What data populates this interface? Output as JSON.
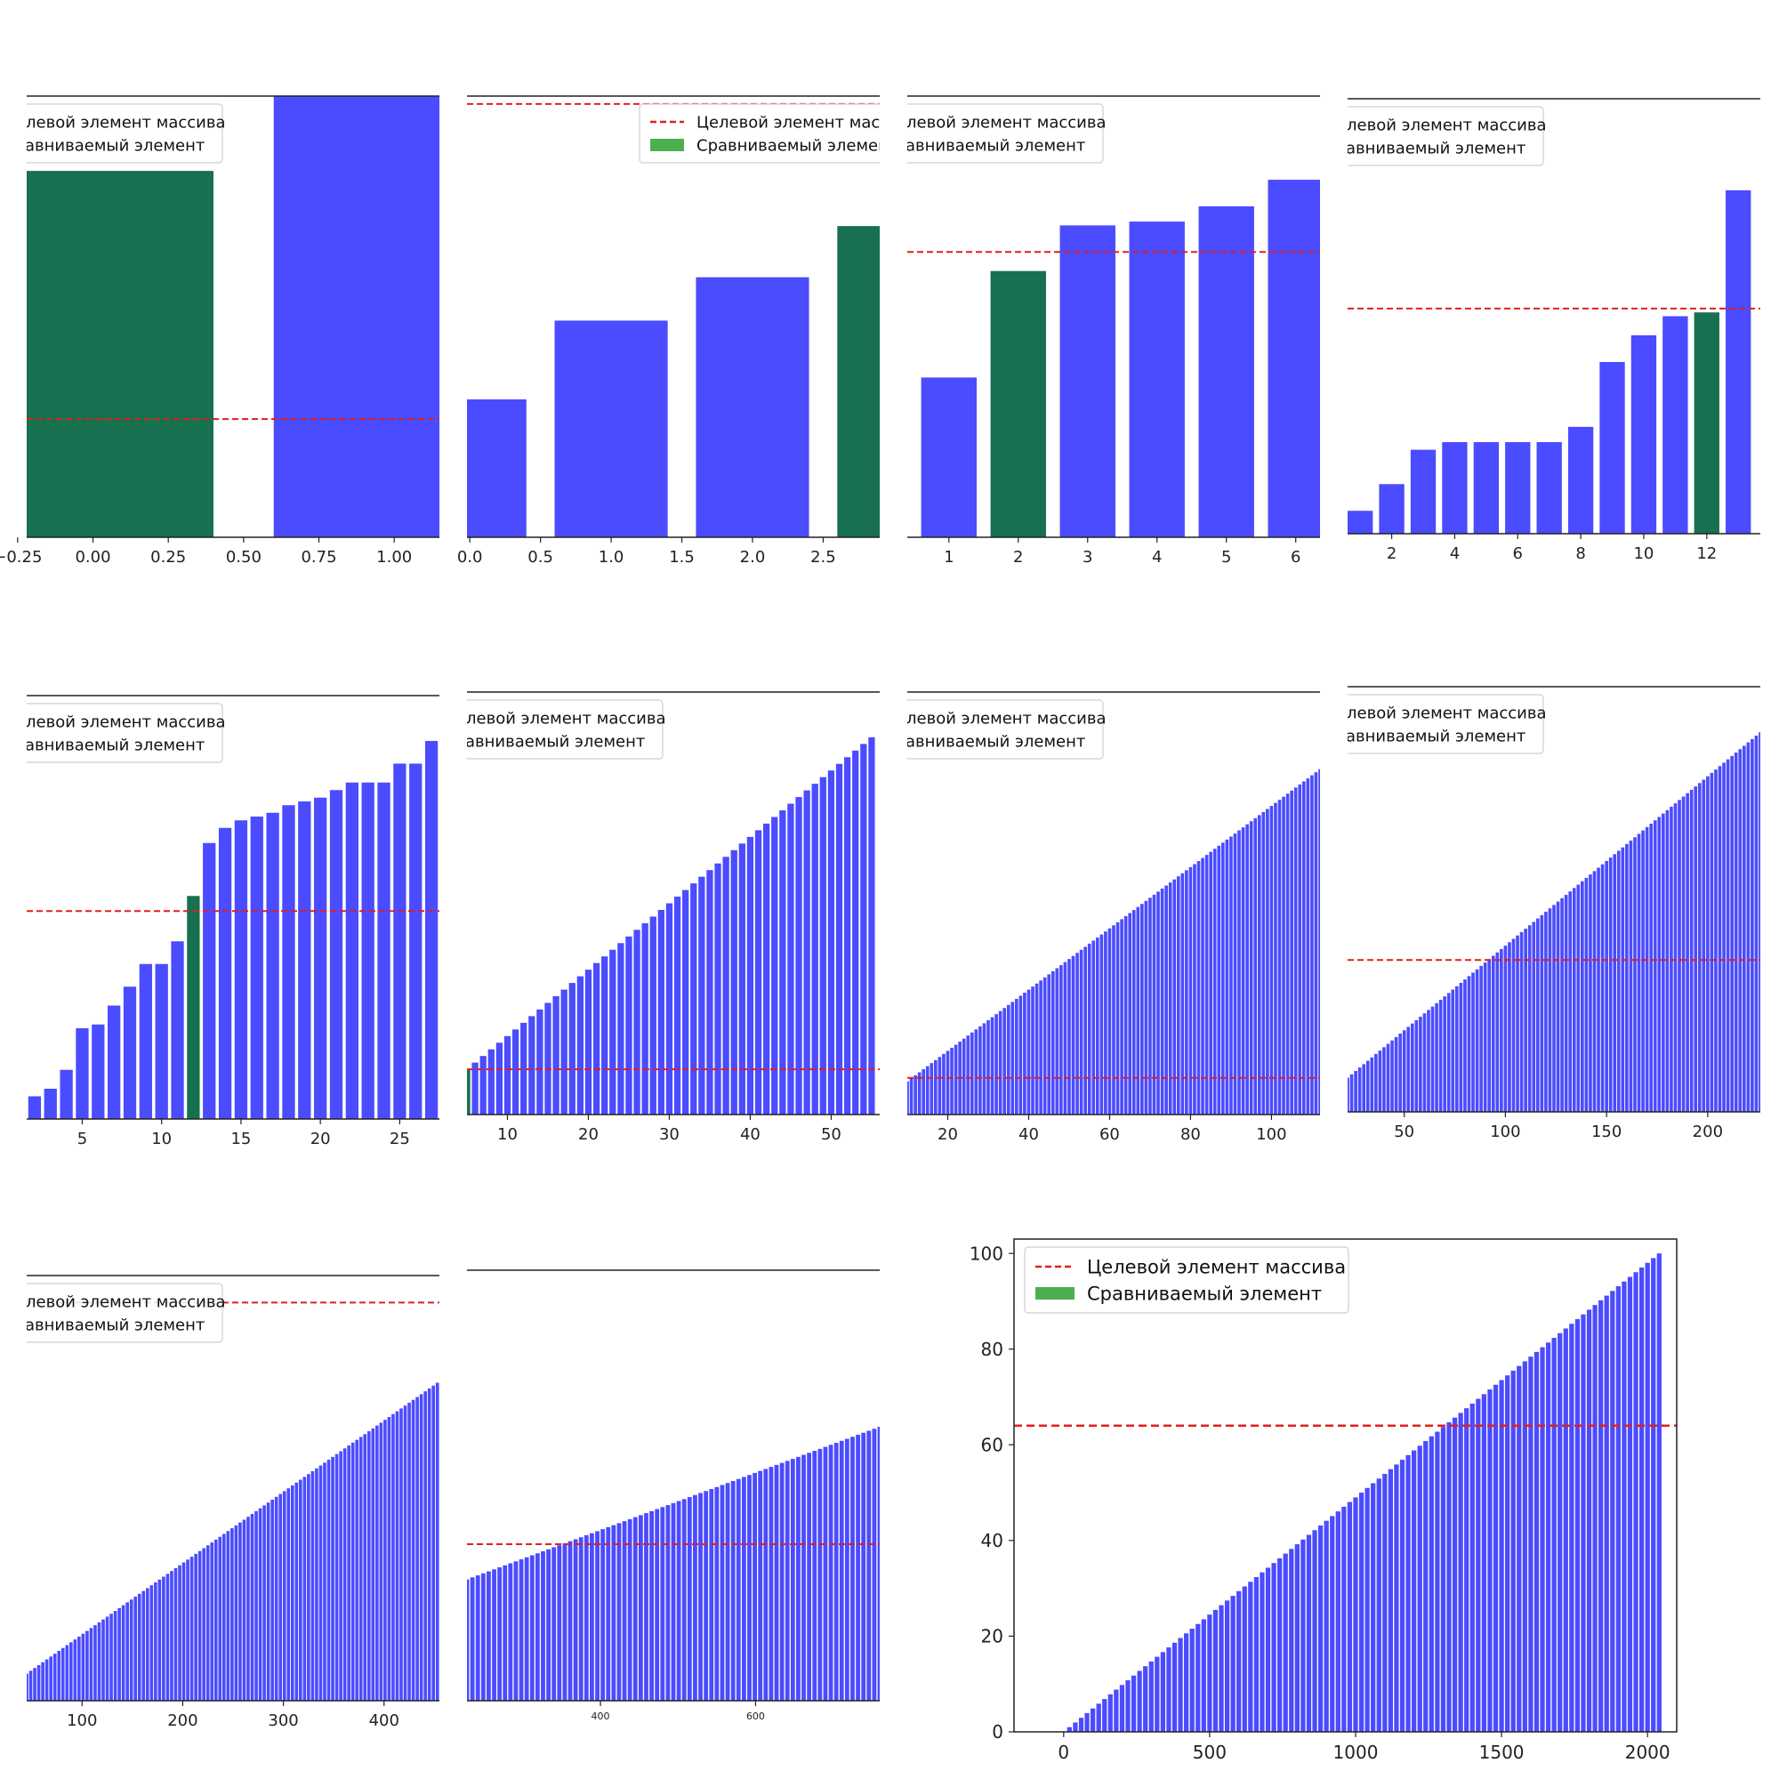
{
  "legend": {
    "target_label": "Целевой элемент массива",
    "compared_label": "Сравниваемый элемент"
  },
  "colors": {
    "bar": "#4b4bff",
    "compared": "#17704f",
    "compared_legend": "#4caf50",
    "target_line": "#e0201a",
    "axis": "#222222"
  },
  "chart_data": [
    {
      "type": "bar",
      "x_range": [
        -0.22,
        1.15
      ],
      "y_range": [
        0,
        1.12
      ],
      "bars": [
        {
          "x": 0,
          "y": 0.93,
          "w": 0.8,
          "hl": true
        },
        {
          "x": 1,
          "y": 1.12,
          "w": 0.8
        }
      ],
      "target": 0.3,
      "x_ticks": [
        {
          "v": -0.25,
          "label": "−0.25"
        },
        {
          "v": 0,
          "label": "0.00"
        },
        {
          "v": 0.25,
          "label": "0.25"
        },
        {
          "v": 0.5,
          "label": "0.50"
        },
        {
          "v": 0.75,
          "label": "0.75"
        },
        {
          "v": 1,
          "label": "1.00"
        }
      ],
      "legend_pos": "upper-left"
    },
    {
      "type": "bar",
      "x_range": [
        -0.02,
        2.9
      ],
      "y_range": [
        0,
        1.12
      ],
      "bars": [
        {
          "x": 0,
          "y": 0.35,
          "w": 0.8
        },
        {
          "x": 1,
          "y": 0.55,
          "w": 0.8
        },
        {
          "x": 2,
          "y": 0.66,
          "w": 0.8
        },
        {
          "x": 3,
          "y": 0.79,
          "w": 0.8,
          "hl": true
        }
      ],
      "target": 1.1,
      "x_ticks": [
        {
          "v": 0,
          "label": "0.0"
        },
        {
          "v": 0.5,
          "label": "0.5"
        },
        {
          "v": 1,
          "label": "1.0"
        },
        {
          "v": 1.5,
          "label": "1.5"
        },
        {
          "v": 2,
          "label": "2.0"
        },
        {
          "v": 2.5,
          "label": "2.5"
        }
      ],
      "legend_pos": "upper-right"
    },
    {
      "type": "bar",
      "x_range": [
        0.4,
        6.35
      ],
      "y_range": [
        0,
        1.16
      ],
      "bars": [
        {
          "x": 0,
          "y": 0.42
        },
        {
          "x": 1,
          "y": 0.42
        },
        {
          "x": 2,
          "y": 0.7,
          "hl": true
        },
        {
          "x": 3,
          "y": 0.82
        },
        {
          "x": 4,
          "y": 0.83
        },
        {
          "x": 5,
          "y": 0.87
        },
        {
          "x": 6,
          "y": 0.94
        }
      ],
      "target": 0.75,
      "x_ticks": [
        {
          "v": 1,
          "label": "1"
        },
        {
          "v": 2,
          "label": "2"
        },
        {
          "v": 3,
          "label": "3"
        },
        {
          "v": 4,
          "label": "4"
        },
        {
          "v": 5,
          "label": "5"
        },
        {
          "v": 6,
          "label": "6"
        }
      ],
      "legend_pos": "upper-left"
    },
    {
      "type": "bar",
      "x_range": [
        0.6,
        13.7
      ],
      "y_range": [
        0,
        1.14
      ],
      "bars": [
        {
          "x": 1,
          "y": 0.06
        },
        {
          "x": 2,
          "y": 0.13
        },
        {
          "x": 3,
          "y": 0.22
        },
        {
          "x": 4,
          "y": 0.24
        },
        {
          "x": 5,
          "y": 0.24
        },
        {
          "x": 6,
          "y": 0.24
        },
        {
          "x": 7,
          "y": 0.24
        },
        {
          "x": 8,
          "y": 0.28
        },
        {
          "x": 9,
          "y": 0.45
        },
        {
          "x": 10,
          "y": 0.52
        },
        {
          "x": 11,
          "y": 0.57
        },
        {
          "x": 12,
          "y": 0.58,
          "hl": true
        },
        {
          "x": 13,
          "y": 0.9
        }
      ],
      "target": 0.59,
      "x_ticks": [
        {
          "v": 2,
          "label": "2"
        },
        {
          "v": 4,
          "label": "4"
        },
        {
          "v": 6,
          "label": "6"
        },
        {
          "v": 8,
          "label": "8"
        },
        {
          "v": 10,
          "label": "10"
        },
        {
          "v": 12,
          "label": "12"
        }
      ],
      "legend_pos": "upper-left"
    },
    {
      "type": "bar",
      "x_range": [
        1.5,
        27.5
      ],
      "y_range": [
        0,
        1.12
      ],
      "bars": [
        {
          "x": 2,
          "y": 0.06
        },
        {
          "x": 3,
          "y": 0.08
        },
        {
          "x": 4,
          "y": 0.13
        },
        {
          "x": 5,
          "y": 0.24
        },
        {
          "x": 6,
          "y": 0.25
        },
        {
          "x": 7,
          "y": 0.3
        },
        {
          "x": 8,
          "y": 0.35
        },
        {
          "x": 9,
          "y": 0.41
        },
        {
          "x": 10,
          "y": 0.41
        },
        {
          "x": 11,
          "y": 0.47
        },
        {
          "x": 12,
          "y": 0.59,
          "hl": true
        },
        {
          "x": 13,
          "y": 0.73
        },
        {
          "x": 14,
          "y": 0.77
        },
        {
          "x": 15,
          "y": 0.79
        },
        {
          "x": 16,
          "y": 0.8
        },
        {
          "x": 17,
          "y": 0.81
        },
        {
          "x": 18,
          "y": 0.83
        },
        {
          "x": 19,
          "y": 0.84
        },
        {
          "x": 20,
          "y": 0.85
        },
        {
          "x": 21,
          "y": 0.87
        },
        {
          "x": 22,
          "y": 0.89
        },
        {
          "x": 23,
          "y": 0.89
        },
        {
          "x": 24,
          "y": 0.89
        },
        {
          "x": 25,
          "y": 0.94
        },
        {
          "x": 26,
          "y": 0.94
        },
        {
          "x": 27,
          "y": 1.0
        }
      ],
      "target": 0.55,
      "x_ticks": [
        {
          "v": 5,
          "label": "5"
        },
        {
          "v": 10,
          "label": "10"
        },
        {
          "v": 15,
          "label": "15"
        },
        {
          "v": 20,
          "label": "20"
        },
        {
          "v": 25,
          "label": "25"
        }
      ],
      "legend_pos": "upper-left"
    },
    {
      "type": "bar",
      "x_range": [
        5,
        56
      ],
      "y_range": [
        0,
        1.12
      ],
      "gen": {
        "from": 5,
        "to": 55,
        "step": 1,
        "y0": 0.12,
        "y1": 1.0,
        "width": 0.8,
        "hl": [
          5
        ]
      },
      "target": 0.12,
      "x_ticks": [
        {
          "v": 10,
          "label": "10"
        },
        {
          "v": 20,
          "label": "20"
        },
        {
          "v": 30,
          "label": "30"
        },
        {
          "v": 40,
          "label": "40"
        },
        {
          "v": 50,
          "label": "50"
        }
      ],
      "legend_pos": "upper-left"
    },
    {
      "type": "bar",
      "x_range": [
        10,
        112
      ],
      "y_range": [
        0,
        1.15
      ],
      "gen": {
        "from": 10,
        "to": 112,
        "step": 1,
        "y0": 0.09,
        "y1": 0.94,
        "width": 0.8
      },
      "target": 0.1,
      "x_ticks": [
        {
          "v": 20,
          "label": "20"
        },
        {
          "v": 40,
          "label": "40"
        },
        {
          "v": 60,
          "label": "60"
        },
        {
          "v": 80,
          "label": "80"
        },
        {
          "v": 100,
          "label": "100"
        }
      ],
      "legend_pos": "upper-left"
    },
    {
      "type": "bar",
      "x_range": [
        22,
        226
      ],
      "y_range": [
        0,
        1.12
      ],
      "gen": {
        "from": 22,
        "to": 226,
        "step": 2,
        "y0": 0.09,
        "y1": 1.0,
        "width": 1.6
      },
      "target": 0.4,
      "x_ticks": [
        {
          "v": 50,
          "label": "50"
        },
        {
          "v": 100,
          "label": "100"
        },
        {
          "v": 150,
          "label": "150"
        },
        {
          "v": 200,
          "label": "200"
        }
      ],
      "legend_pos": "upper-left"
    },
    {
      "type": "bar",
      "x_range": [
        45,
        455
      ],
      "y_range": [
        0,
        1.1
      ],
      "gen": {
        "from": 45,
        "to": 455,
        "step": 4,
        "y0": 0.07,
        "y1": 0.83,
        "width": 3.2
      },
      "target": 1.03,
      "x_ticks": [
        {
          "v": 100,
          "label": "100"
        },
        {
          "v": 200,
          "label": "200"
        },
        {
          "v": 300,
          "label": "300"
        },
        {
          "v": 400,
          "label": "400"
        }
      ],
      "legend_pos": "upper-left"
    },
    {
      "type": "bar",
      "x_range": [
        228,
        760
      ],
      "y_range": [
        0,
        1.1
      ],
      "gen": {
        "from": 228,
        "to": 760,
        "step": 7,
        "y0": 0.31,
        "y1": 0.7,
        "width": 5.5
      },
      "target": 0.4,
      "x_ticks": [
        {
          "v": 400,
          "label": "400"
        },
        {
          "v": 600,
          "label": "600"
        }
      ],
      "legend_pos": "none"
    },
    {
      "type": "bar",
      "x_range": [
        -170,
        2100
      ],
      "y_range": [
        0,
        103
      ],
      "gen": {
        "from": 0,
        "to": 2040,
        "step": 20,
        "y0": 0,
        "y1": 100,
        "width": 16
      },
      "target": 64,
      "x_ticks": [
        {
          "v": 0,
          "label": "0"
        },
        {
          "v": 500,
          "label": "500"
        },
        {
          "v": 1000,
          "label": "1000"
        },
        {
          "v": 1500,
          "label": "1500"
        },
        {
          "v": 2000,
          "label": "2000"
        }
      ],
      "y_ticks": [
        {
          "v": 0,
          "label": "0"
        },
        {
          "v": 20,
          "label": "20"
        },
        {
          "v": 40,
          "label": "40"
        },
        {
          "v": 60,
          "label": "60"
        },
        {
          "v": 80,
          "label": "80"
        },
        {
          "v": 100,
          "label": "100"
        }
      ],
      "legend_pos": "upper-left",
      "framed": true
    }
  ]
}
